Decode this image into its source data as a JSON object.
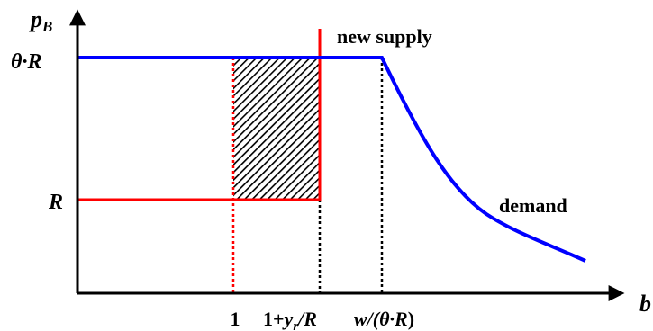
{
  "axes": {
    "y_label": "p",
    "y_label_sub": "B",
    "x_label": "b"
  },
  "y_ticks": {
    "theta_r": "θ·R",
    "r": "R"
  },
  "x_ticks": {
    "one": "1",
    "one_plus_yr_prefix": "1+",
    "one_plus_yr_y": "y",
    "one_plus_yr_sub": "r",
    "one_plus_yr_suffix": "/R",
    "w_theta_r_prefix": "w/(",
    "w_theta_r_mid": "θ·R",
    "w_theta_r_suffix": ")"
  },
  "curves": {
    "new_supply": "new supply",
    "demand": "demand"
  },
  "colors": {
    "blue_curve": "#0000ff",
    "red_curve": "#ff0000",
    "axis": "#000000",
    "hatch": "#000000"
  }
}
